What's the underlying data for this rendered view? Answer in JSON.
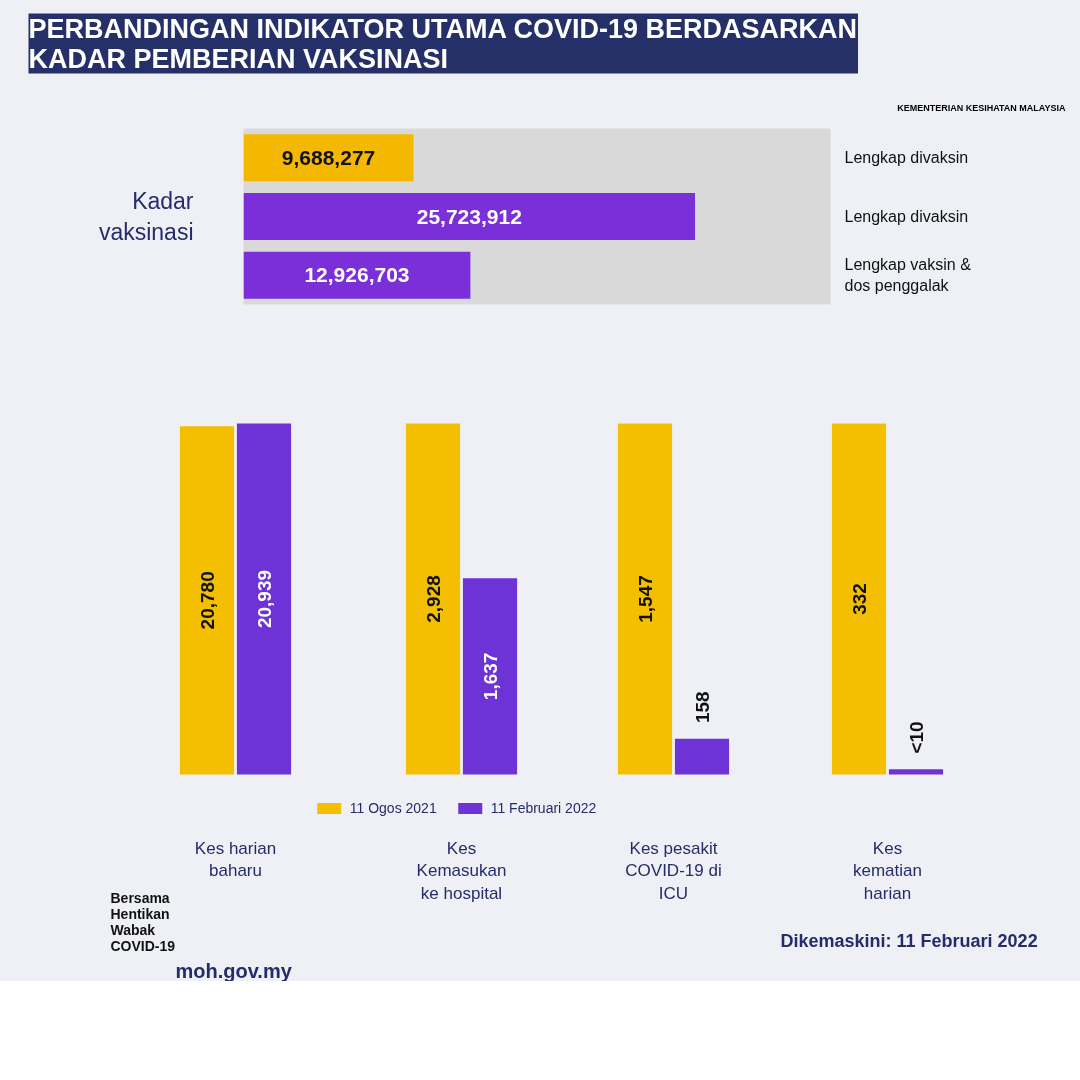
{
  "chart_data": [
    {
      "type": "bar",
      "orientation": "horizontal",
      "title": "PERBANDINGAN INDIKATOR UTAMA COVID-19 BERDASARKAN KADAR PEMBERIAN VAKSINASI",
      "ylabel": "Kadar vaksinasi",
      "categories": [
        "Lengkap divaksin",
        "Lengkap divaksin",
        "Lengkap vaksin & dos penggalak"
      ],
      "values": [
        9688277,
        25723912,
        12926703
      ],
      "value_labels": [
        "9,688,277",
        "25,723,912",
        "12,926,703"
      ],
      "colors": [
        "#f4b800",
        "#7a2fd8",
        "#7a2fd8"
      ],
      "annotations": [
        "KEMENTERIAN KESIHATAN MALAYSIA"
      ]
    },
    {
      "type": "bar",
      "categories": [
        "Kes harian baharu"
      ],
      "series": [
        {
          "color": "#f4bf00",
          "values": [
            20780
          ],
          "value_labels": [
            "20,780"
          ]
        },
        {
          "color": "#6d33d6",
          "values": [
            20939
          ],
          "value_labels": [
            "20,939"
          ]
        }
      ],
      "annotations": [
        "Bersama Hentikan Wabak COVID-19",
        "moh.gov.my"
      ]
    },
    {
      "type": "bar",
      "categories": [
        "Kes Kemasukan ke hospital"
      ],
      "series": [
        {
          "name": "11 Ogos 2021",
          "color": "#f4bf00",
          "values": [
            2928
          ],
          "value_labels": [
            "2,928"
          ]
        },
        {
          "name": "11 Februari 2022",
          "color": "#6d33d6",
          "values": [
            1637
          ],
          "value_labels": [
            "1,637"
          ]
        }
      ],
      "legend": "bottom"
    },
    {
      "type": "bar",
      "categories": [
        "Kes pesakit COVID-19 di ICU"
      ],
      "series": [
        {
          "color": "#f4bf00",
          "values": [
            1547
          ],
          "value_labels": [
            "1,547"
          ]
        },
        {
          "color": "#6d33d6",
          "values": [
            158
          ],
          "value_labels": [
            "158"
          ]
        }
      ]
    },
    {
      "type": "bar",
      "categories": [
        "Kes kematian harian"
      ],
      "series": [
        {
          "color": "#f4bf00",
          "values": [
            332
          ],
          "value_labels": [
            "332"
          ]
        },
        {
          "color": "#6d33d6",
          "values": [
            5
          ],
          "value_labels": [
            "<10"
          ]
        }
      ],
      "annotations": [
        "Dikemaskini: 11 Februari 2022"
      ]
    }
  ]
}
